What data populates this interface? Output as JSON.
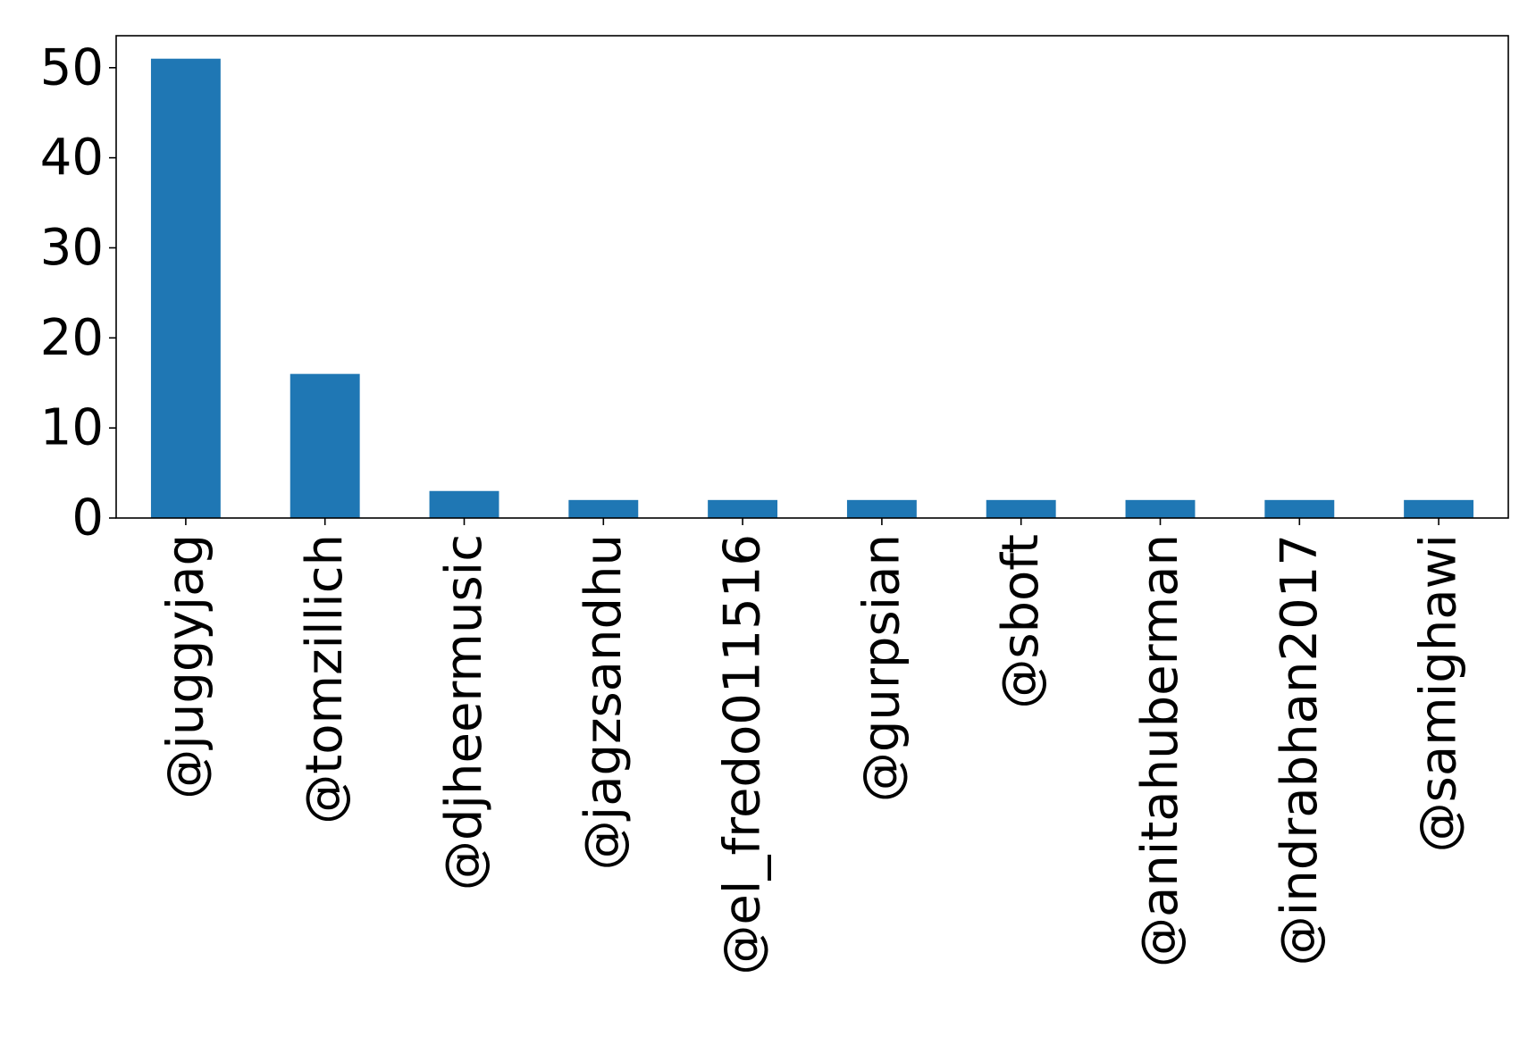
{
  "chart_data": {
    "type": "bar",
    "categories": [
      "@juggyjag",
      "@tomzillich",
      "@djheermusic",
      "@jagzsandhu",
      "@el_fredo011516",
      "@gurpsian",
      "@sboft",
      "@anitahuberman",
      "@indrabhan2017",
      "@samighawi"
    ],
    "values": [
      51,
      16,
      3,
      2,
      2,
      2,
      2,
      2,
      2,
      2
    ],
    "title": "",
    "xlabel": "",
    "ylabel": "",
    "ylim": [
      0,
      53.55
    ],
    "yticks": [
      0,
      10,
      20,
      30,
      40,
      50
    ],
    "grid": false,
    "bar_color": "#1f77b4",
    "axis_color": "#000000"
  }
}
